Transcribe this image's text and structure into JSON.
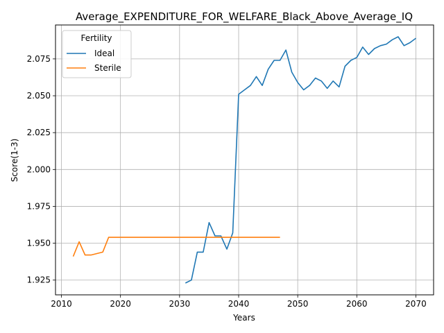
{
  "chart_data": {
    "type": "line",
    "title": "Average_EXPENDITURE_FOR_WELFARE_Black_Above_Average_IQ",
    "xlabel": "Years",
    "ylabel": "Score(1-3)",
    "xlim": [
      2009,
      2073
    ],
    "ylim": [
      1.915,
      2.098
    ],
    "xticks": [
      2010,
      2020,
      2030,
      2040,
      2050,
      2060,
      2070
    ],
    "yticks": [
      1.925,
      1.95,
      1.975,
      2.0,
      2.025,
      2.05,
      2.075
    ],
    "ytick_labels": [
      "1.925",
      "1.950",
      "1.975",
      "2.000",
      "2.025",
      "2.050",
      "2.075"
    ],
    "grid": true,
    "legend": {
      "title": "Fertility",
      "placement": "top-left"
    },
    "series": [
      {
        "name": "Ideal",
        "color": "#1f77b4",
        "x": [
          2031,
          2032,
          2033,
          2034,
          2035,
          2036,
          2037,
          2038,
          2039,
          2040,
          2041,
          2042,
          2043,
          2044,
          2045,
          2046,
          2047,
          2048,
          2049,
          2050,
          2051,
          2052,
          2053,
          2054,
          2055,
          2056,
          2057,
          2058,
          2059,
          2060,
          2061,
          2062,
          2063,
          2064,
          2065,
          2066,
          2067,
          2068,
          2069,
          2070
        ],
        "y": [
          1.923,
          1.925,
          1.944,
          1.944,
          1.964,
          1.955,
          1.955,
          1.946,
          1.957,
          2.051,
          2.054,
          2.057,
          2.063,
          2.057,
          2.068,
          2.074,
          2.074,
          2.081,
          2.066,
          2.059,
          2.054,
          2.057,
          2.062,
          2.06,
          2.055,
          2.06,
          2.056,
          2.07,
          2.074,
          2.076,
          2.083,
          2.078,
          2.082,
          2.084,
          2.085,
          2.088,
          2.09,
          2.084,
          2.086,
          2.089
        ]
      },
      {
        "name": "Sterile",
        "color": "#ff7f0e",
        "x": [
          2012,
          2013,
          2014,
          2015,
          2016,
          2017,
          2018,
          2019,
          2020,
          2021,
          2022,
          2023,
          2024,
          2025,
          2026,
          2027,
          2028,
          2029,
          2030,
          2031,
          2032,
          2033,
          2034,
          2035,
          2036,
          2037,
          2038,
          2039,
          2040,
          2041,
          2042,
          2043,
          2044,
          2045,
          2046,
          2047
        ],
        "y": [
          1.941,
          1.951,
          1.942,
          1.942,
          1.943,
          1.944,
          1.954,
          1.954,
          1.954,
          1.954,
          1.954,
          1.954,
          1.954,
          1.954,
          1.954,
          1.954,
          1.954,
          1.954,
          1.954,
          1.954,
          1.954,
          1.954,
          1.954,
          1.954,
          1.954,
          1.954,
          1.954,
          1.954,
          1.954,
          1.954,
          1.954,
          1.954,
          1.954,
          1.954,
          1.954,
          1.954
        ]
      }
    ]
  }
}
